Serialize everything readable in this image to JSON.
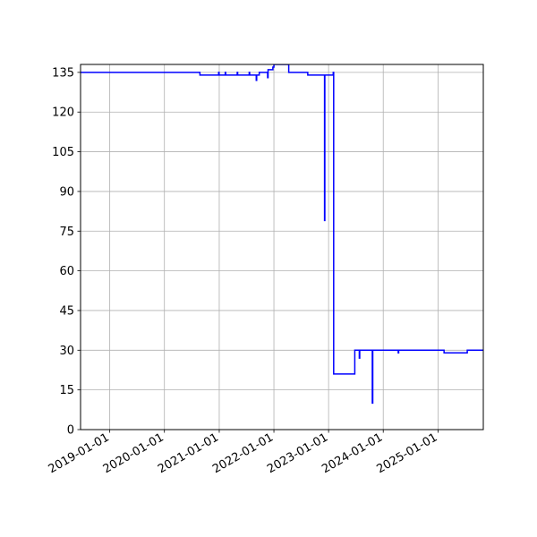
{
  "chart_data": {
    "type": "line",
    "title": "",
    "xlabel": "",
    "ylabel": "",
    "x_axis": "date",
    "xlim": [
      "2018-06-20",
      "2025-10-30"
    ],
    "ylim": [
      0,
      138
    ],
    "grid": true,
    "legend": "none",
    "yticks": [
      0,
      15,
      30,
      45,
      60,
      75,
      90,
      105,
      120,
      135
    ],
    "ytick_labels": [
      "0",
      "15",
      "30",
      "45",
      "60",
      "75",
      "90",
      "105",
      "120",
      "135"
    ],
    "xticks": [
      "2019-01-01",
      "2020-01-01",
      "2021-01-01",
      "2022-01-01",
      "2023-01-01",
      "2024-01-01",
      "2025-01-01"
    ],
    "xtick_labels": [
      "2019-01-01",
      "2020-01-01",
      "2021-01-01",
      "2022-01-01",
      "2023-01-01",
      "2024-01-01",
      "2025-01-01"
    ],
    "series": [
      {
        "name": "",
        "color": "#0000ff",
        "points": [
          [
            "2018-06-20",
            135
          ],
          [
            "2020-08-25",
            135
          ],
          [
            "2020-08-25",
            134
          ],
          [
            "2020-12-28",
            134
          ],
          [
            "2020-12-28",
            135
          ],
          [
            "2020-12-31",
            135
          ],
          [
            "2020-12-31",
            134
          ],
          [
            "2021-02-10",
            134
          ],
          [
            "2021-02-10",
            135
          ],
          [
            "2021-02-13",
            135
          ],
          [
            "2021-02-13",
            134
          ],
          [
            "2021-05-01",
            134
          ],
          [
            "2021-05-01",
            135
          ],
          [
            "2021-05-04",
            135
          ],
          [
            "2021-05-04",
            134
          ],
          [
            "2021-07-20",
            134
          ],
          [
            "2021-07-20",
            135
          ],
          [
            "2021-07-23",
            135
          ],
          [
            "2021-07-23",
            134
          ],
          [
            "2021-09-05",
            134
          ],
          [
            "2021-09-05",
            132
          ],
          [
            "2021-09-08",
            132
          ],
          [
            "2021-09-08",
            134
          ],
          [
            "2021-09-25",
            134
          ],
          [
            "2021-09-25",
            135
          ],
          [
            "2021-11-20",
            135
          ],
          [
            "2021-11-20",
            133
          ],
          [
            "2021-11-23",
            133
          ],
          [
            "2021-11-23",
            136
          ],
          [
            "2021-12-25",
            136
          ],
          [
            "2021-12-25",
            137
          ],
          [
            "2022-01-01",
            137
          ],
          [
            "2022-01-01",
            138
          ],
          [
            "2022-04-10",
            138
          ],
          [
            "2022-04-10",
            135
          ],
          [
            "2022-08-15",
            135
          ],
          [
            "2022-08-15",
            134
          ],
          [
            "2022-12-05",
            134
          ],
          [
            "2022-12-05",
            79
          ],
          [
            "2022-12-07",
            79
          ],
          [
            "2022-12-07",
            134
          ],
          [
            "2023-02-01",
            134
          ],
          [
            "2023-02-01",
            135
          ],
          [
            "2023-02-04",
            135
          ],
          [
            "2023-02-04",
            21
          ],
          [
            "2023-06-25",
            21
          ],
          [
            "2023-06-25",
            30
          ],
          [
            "2023-07-25",
            30
          ],
          [
            "2023-07-25",
            27
          ],
          [
            "2023-07-28",
            27
          ],
          [
            "2023-07-28",
            30
          ],
          [
            "2023-10-20",
            30
          ],
          [
            "2023-10-20",
            10
          ],
          [
            "2023-10-23",
            10
          ],
          [
            "2023-10-23",
            30
          ],
          [
            "2024-04-10",
            30
          ],
          [
            "2024-04-10",
            29
          ],
          [
            "2024-04-13",
            29
          ],
          [
            "2024-04-13",
            30
          ],
          [
            "2025-02-10",
            30
          ],
          [
            "2025-02-10",
            29
          ],
          [
            "2025-07-15",
            29
          ],
          [
            "2025-07-15",
            30
          ],
          [
            "2025-10-30",
            30
          ]
        ]
      }
    ]
  }
}
